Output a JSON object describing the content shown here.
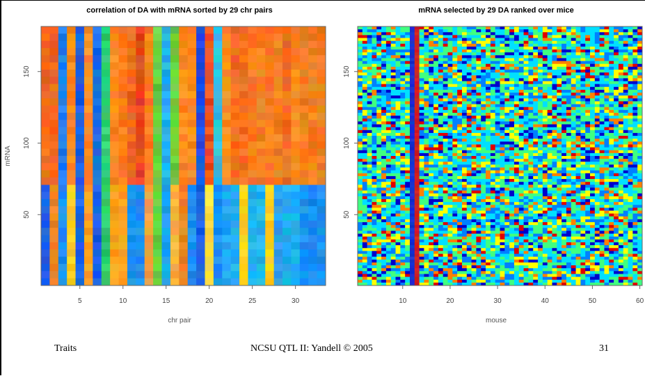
{
  "footer": {
    "left": "Traits",
    "center": "NCSU QTL II: Yandell © 2005",
    "right": "31"
  },
  "chart_data": [
    {
      "type": "heatmap",
      "title": "correlation of DA with mRNA sorted by 29 chr pairs",
      "xlabel": "chr pair",
      "ylabel": "mRNA",
      "xlim": [
        0.5,
        33.5
      ],
      "ylim": [
        0.5,
        181.5
      ],
      "xticks": [
        5,
        10,
        15,
        20,
        25,
        30
      ],
      "yticks": [
        50,
        100,
        150
      ],
      "n_columns": 33,
      "n_rows": 181,
      "row_split": 71,
      "column_colors_bottom": [
        "#1a5fe6",
        "#f08420",
        "#1a8ff0",
        "#ffd020",
        "#1a5fe6",
        "#ffa020",
        "#1a5fe6",
        "#30d070",
        "#ffa020",
        "#ffa020",
        "#1a8ff0",
        "#1a8ff0",
        "#f0a040",
        "#6ad040",
        "#20a8f0",
        "#ffb040",
        "#f08420",
        "#1a8ff0",
        "#1a5fe6",
        "#ffe040",
        "#1a8ff0",
        "#20a8f0",
        "#20b0f0",
        "#ffd020",
        "#20b0f0",
        "#20b0f0",
        "#ffd020",
        "#30a0f0",
        "#20b0f0",
        "#20b0f0",
        "#1a8ff0",
        "#1a8ff0",
        "#1a8ff0"
      ],
      "column_colors_top": [
        "#f06a20",
        "#f06a20",
        "#2080f0",
        "#ff8a20",
        "#1a5fe6",
        "#ff8a20",
        "#1a70e6",
        "#30d070",
        "#ff8a20",
        "#ff7a20",
        "#f06a20",
        "#e84a20",
        "#ff7a20",
        "#6ad040",
        "#20b0f0",
        "#6ad040",
        "#ff8a20",
        "#ff8a20",
        "#2050e6",
        "#f05020",
        "#30c0e6",
        "#ff8a20",
        "#f06a20",
        "#f06a20",
        "#ff7a20",
        "#f08020",
        "#ff7a20",
        "#f08020",
        "#f07020",
        "#ff8a20",
        "#f08020",
        "#f08020",
        "#f08020"
      ],
      "colorscale": [
        "#0000cc",
        "#0080ff",
        "#00e0ff",
        "#40ff80",
        "#ffff00",
        "#ff8000",
        "#e00000"
      ]
    },
    {
      "type": "heatmap",
      "title": "mRNA selected by 29 DA ranked over mice",
      "xlabel": "mouse",
      "ylabel": "",
      "xlim": [
        0.5,
        60.5
      ],
      "ylim": [
        0.5,
        181.5
      ],
      "xticks": [
        10,
        20,
        30,
        40,
        50,
        60
      ],
      "yticks": [
        50,
        100,
        150
      ],
      "n_columns": 60,
      "n_rows": 181,
      "highlight_columns": [
        {
          "mouse": 12,
          "color": "#1a30d0"
        },
        {
          "mouse": 13,
          "color": "#d02020"
        }
      ],
      "colorscale": [
        "#0000cc",
        "#0080ff",
        "#00e0ff",
        "#40ff80",
        "#ffff00",
        "#ff8000",
        "#e00000"
      ]
    }
  ]
}
